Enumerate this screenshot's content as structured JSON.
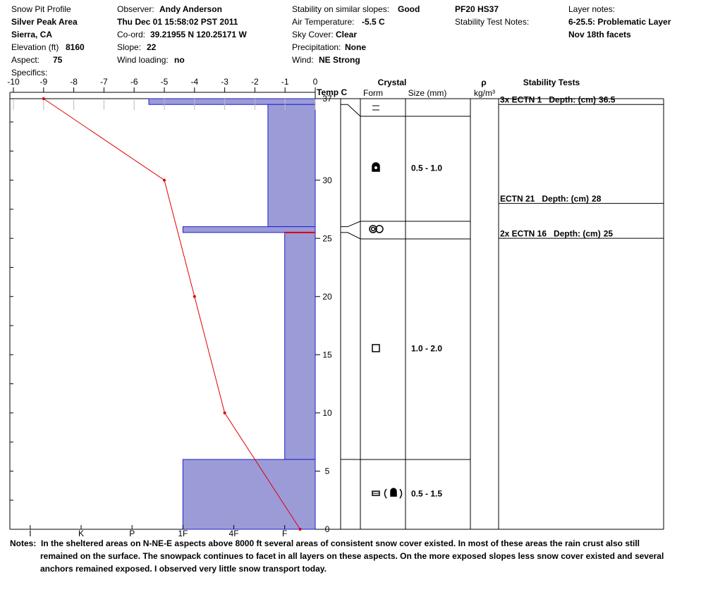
{
  "header": {
    "title": "Snow Pit Profile",
    "area": "Silver Peak Area",
    "region": "Sierra, CA",
    "elevation_label": "Elevation (ft)",
    "elevation": 8160,
    "aspect_label": "Aspect:",
    "aspect": 75,
    "specifics_label": "Specifics:",
    "observer_label": "Observer:",
    "observer": "Andy Anderson",
    "date": "Thu Dec 01 15:58:02 PST 2011",
    "coord_label": "Co-ord:",
    "coord": "39.21955 N 120.25171 W",
    "slope_label": "Slope:",
    "slope": 22,
    "wind_loading_label": "Wind loading:",
    "wind_loading": "no",
    "stability_label": "Stability on similar slopes:",
    "stability": "Good",
    "air_temp_label": "Air Temperature:",
    "air_temp": "-5.5 C",
    "sky_label": "Sky Cover:",
    "sky": "Clear",
    "precip_label": "Precipitation:",
    "precip": "None",
    "wind_label": "Wind:",
    "wind": "NE Strong",
    "pit": "PF20 HS37",
    "test_notes_label": "Stability Test Notes:",
    "layer_notes_label": "Layer notes:",
    "layer_notes": [
      "6-25.5: Problematic Layer",
      "Nov 18th facets"
    ]
  },
  "chart_data": {
    "type": "snow-profile",
    "x_label": "Temp C",
    "xlim": [
      -10,
      0
    ],
    "xticks": [
      -10,
      -9,
      -8,
      -7,
      -6,
      -5,
      -4,
      -3,
      -2,
      -1,
      0
    ],
    "ylim": [
      0,
      37
    ],
    "yticks": [
      0,
      5,
      10,
      15,
      20,
      25,
      30,
      37
    ],
    "yminor": [
      2.5,
      7.5,
      12.5,
      17.5,
      22.5,
      27.5,
      32.5,
      35
    ],
    "temperature": {
      "color": "#e00000",
      "depth": [
        37,
        30,
        20,
        10,
        0
      ],
      "values": [
        -9,
        -5,
        -4,
        -3,
        -0.5
      ]
    },
    "hardness": {
      "hlim": [
        0.4,
        6.4
      ],
      "color": "#9b9bd8",
      "edge_color": "#2020c8",
      "ticks": [
        {
          "value": 1,
          "label": "F"
        },
        {
          "value": 2,
          "label": "4F"
        },
        {
          "value": 3,
          "label": "1F"
        },
        {
          "value": 4,
          "label": "P"
        },
        {
          "value": 5,
          "label": "K"
        },
        {
          "value": 6,
          "label": "I"
        }
      ],
      "layers": [
        {
          "top": 37,
          "bottom": 36.5,
          "value": 3.67
        },
        {
          "top": 36.5,
          "bottom": 26,
          "value": 1.33
        },
        {
          "top": 26,
          "bottom": 25.5,
          "value": 3
        },
        {
          "top": 25.5,
          "bottom": 6,
          "value": 1
        },
        {
          "top": 6,
          "bottom": 0,
          "value": 3
        }
      ]
    },
    "problem_layer": {
      "depth": 25.5,
      "color": "#e00000"
    }
  },
  "table": {
    "crystal": "Crystal",
    "form": "Form",
    "size": "Size (mm)",
    "rho": "ρ",
    "density_unit": "kg/m³",
    "tests_title": "Stability Tests",
    "sizes": [
      null,
      "0.5 - 1.0",
      null,
      "1.0 - 2.0",
      "0.5 - 1.5"
    ],
    "tests": [
      {
        "test": "3x ECTN 1",
        "depth_label": "Depth: (cm)",
        "depth": 36.5
      },
      {
        "test": "ECTN 21",
        "depth_label": "Depth: (cm)",
        "depth": 28
      },
      {
        "test": "2x ECTN 16",
        "depth_label": "Depth: (cm)",
        "depth": 25
      }
    ]
  },
  "notes": {
    "label": "Notes:",
    "text": "In the sheltered areas on N-NE-E aspects above 8000 ft several areas of consistent snow cover existed. In most of these areas the rain crust also still remained on the surface. The snowpack continues to facet in all layers on these aspects. On the more exposed slopes less snow cover existed and several anchors remained exposed. I observed very little snow transport today."
  }
}
